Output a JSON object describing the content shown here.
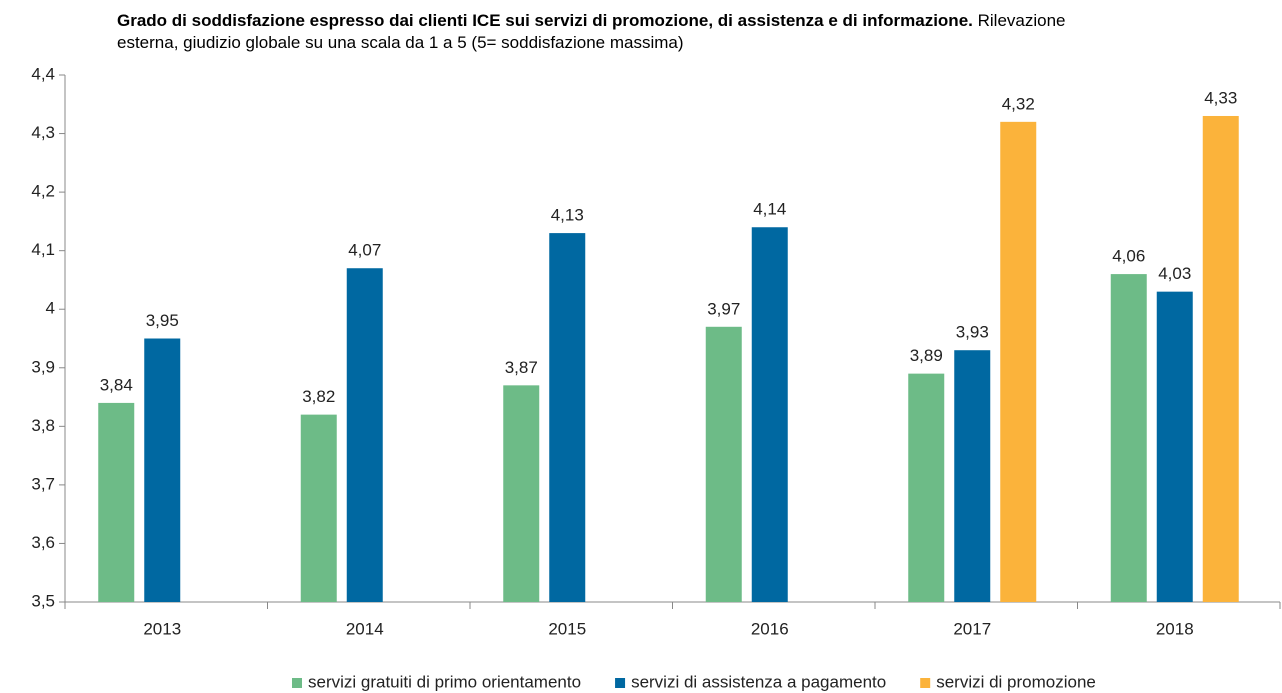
{
  "chart_data": {
    "type": "bar",
    "title": "Grado di  soddisfazione espresso dai clienti ICE sui servizi di promozione, di assistenza e di informazione.",
    "subtitle": "Rilevazione esterna, giudizio globale su una scala da 1 a 5 (5= soddisfazione massima)",
    "categories": [
      "2013",
      "2014",
      "2015",
      "2016",
      "2017",
      "2018"
    ],
    "series": [
      {
        "name": "servizi gratuiti di primo orientamento",
        "color": "#6dbb87",
        "values": [
          3.84,
          3.82,
          3.87,
          3.97,
          3.89,
          4.06
        ],
        "value_labels": [
          "3,84",
          "3,82",
          "3,87",
          "3,97",
          "3,89",
          "4,06"
        ]
      },
      {
        "name": "servizi di assistenza a pagamento",
        "color": "#0068a1",
        "values": [
          3.95,
          4.07,
          4.13,
          4.14,
          3.93,
          4.03
        ],
        "value_labels": [
          "3,95",
          "4,07",
          "4,13",
          "4,14",
          "3,93",
          "4,03"
        ]
      },
      {
        "name": "servizi di promozione",
        "color": "#fbb33b",
        "values": [
          null,
          null,
          null,
          null,
          4.32,
          4.33
        ],
        "value_labels": [
          null,
          null,
          null,
          null,
          "4,32",
          "4,33"
        ]
      }
    ],
    "ylim": [
      3.5,
      4.4
    ],
    "yticks": [
      {
        "value": 3.5,
        "label": "3,5"
      },
      {
        "value": 3.6,
        "label": "3,6"
      },
      {
        "value": 3.7,
        "label": "3,7"
      },
      {
        "value": 3.8,
        "label": "3,8"
      },
      {
        "value": 3.9,
        "label": "3,9"
      },
      4,
      {
        "value": 4.1,
        "label": "4,1"
      },
      {
        "value": 4.2,
        "label": "4,2"
      },
      {
        "value": 4.3,
        "label": "4,3"
      },
      {
        "value": 4.4,
        "label": "4,4"
      }
    ],
    "grid": false,
    "legend": "bottom"
  }
}
